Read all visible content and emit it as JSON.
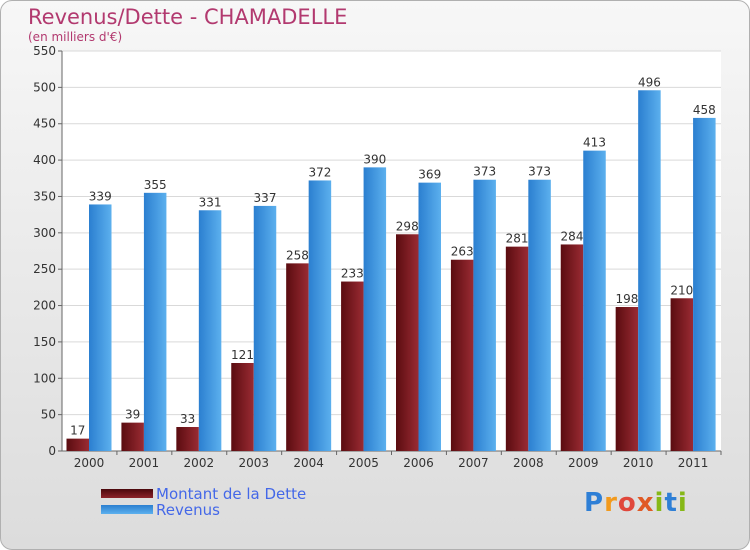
{
  "title": "Revenus/Dette - CHAMADELLE",
  "subtitle": "(en milliers d'€)",
  "chart_data": {
    "type": "bar",
    "categories": [
      "2000",
      "2001",
      "2002",
      "2003",
      "2004",
      "2005",
      "2006",
      "2007",
      "2008",
      "2009",
      "2010",
      "2011"
    ],
    "series": [
      {
        "name": "Montant de la Dette",
        "values": [
          17,
          39,
          33,
          121,
          258,
          233,
          298,
          263,
          281,
          284,
          198,
          210
        ],
        "color": "#7b1a1e"
      },
      {
        "name": "Revenus",
        "values": [
          339,
          355,
          331,
          337,
          372,
          390,
          369,
          373,
          373,
          413,
          496,
          458
        ],
        "color": "#3f9ae2"
      }
    ],
    "ylim": [
      0,
      550
    ],
    "yticks": [
      0,
      50,
      100,
      150,
      200,
      250,
      300,
      350,
      400,
      450,
      500,
      550
    ],
    "grid": true,
    "legend": "bottom-left"
  },
  "logo": {
    "text": "Proxiti",
    "colors": [
      "#2e7fd6",
      "#f29a1d",
      "#e0473b",
      "#e05a25",
      "#86b817",
      "#2e7fd6",
      "#86b817"
    ]
  }
}
